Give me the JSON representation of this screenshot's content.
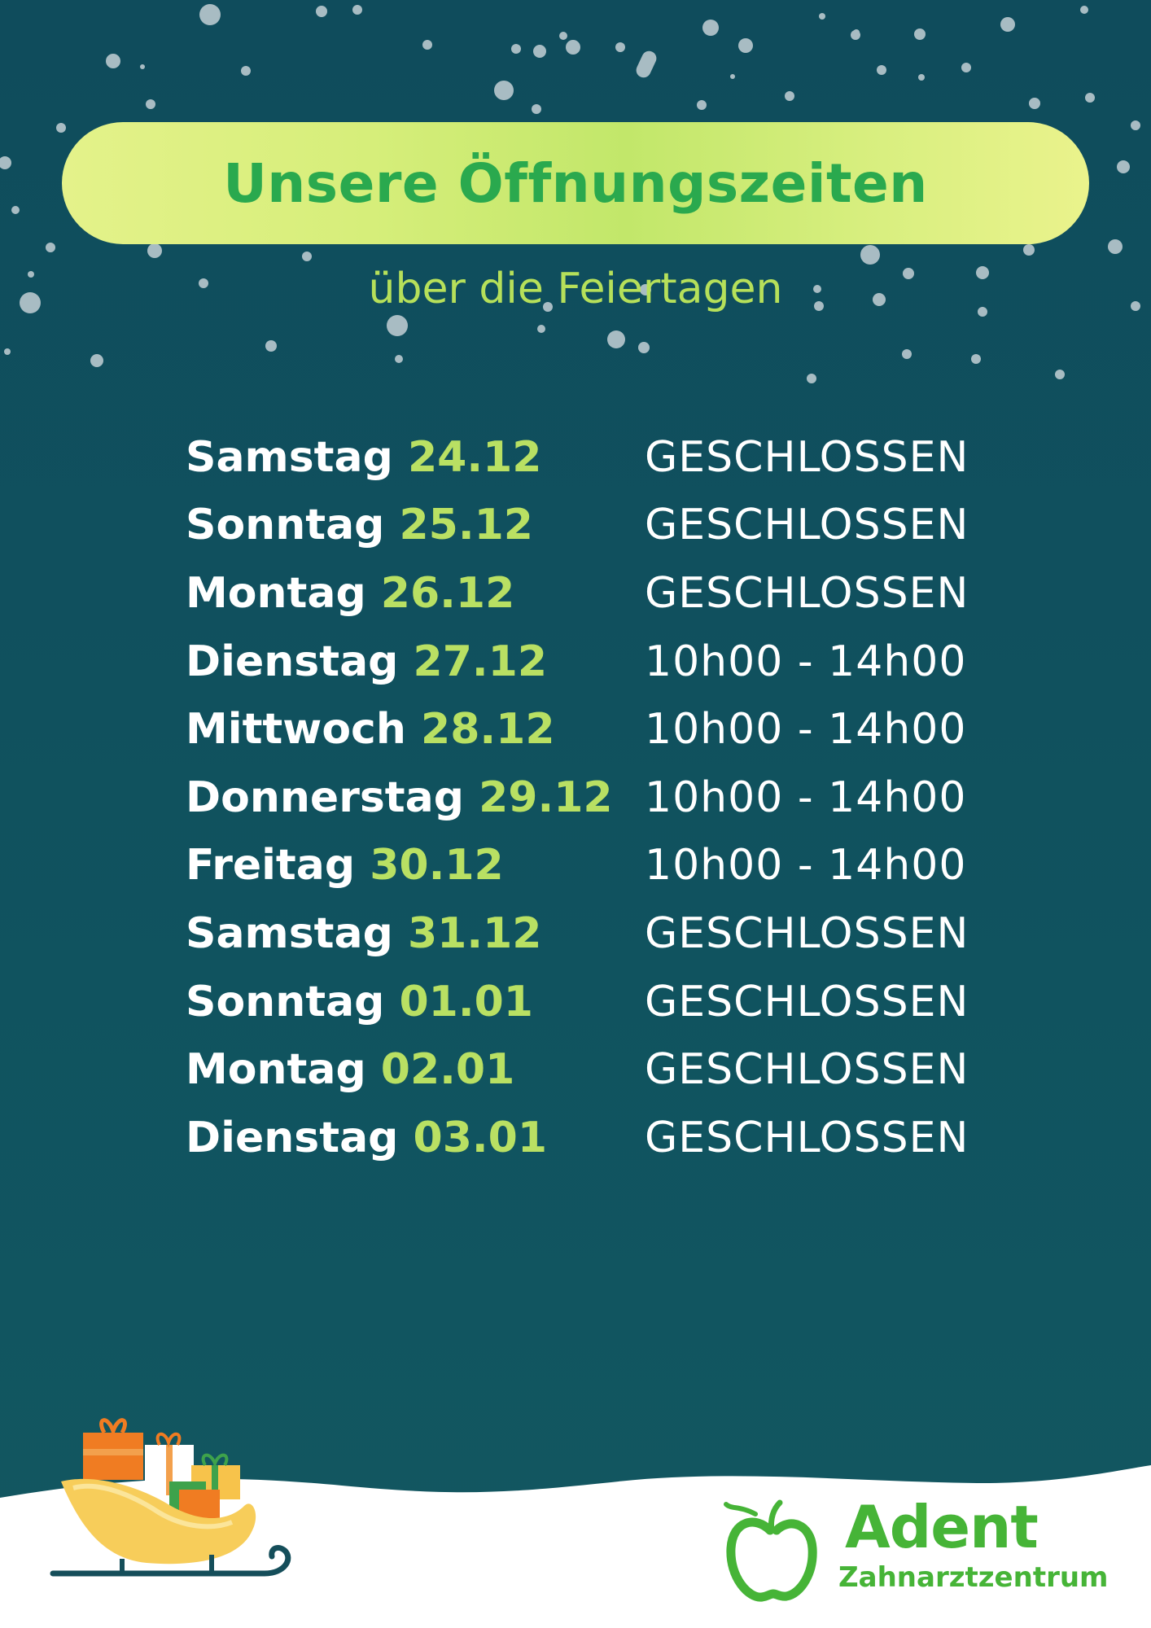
{
  "header": {
    "title": "Unsere Öffnungszeiten",
    "subtitle": "über die Feiertagen"
  },
  "schedule": [
    {
      "day": "Samstag",
      "date": "24.12",
      "status": "GESCHLOSSEN"
    },
    {
      "day": "Sonntag",
      "date": "25.12",
      "status": "GESCHLOSSEN"
    },
    {
      "day": "Montag",
      "date": "26.12",
      "status": "GESCHLOSSEN"
    },
    {
      "day": "Dienstag",
      "date": "27.12",
      "status": "10h00 - 14h00"
    },
    {
      "day": "Mittwoch",
      "date": "28.12",
      "status": "10h00 - 14h00"
    },
    {
      "day": "Donnerstag",
      "date": "29.12",
      "status": "10h00 - 14h00"
    },
    {
      "day": "Freitag",
      "date": "30.12",
      "status": "10h00 - 14h00"
    },
    {
      "day": "Samstag",
      "date": "31.12",
      "status": "GESCHLOSSEN"
    },
    {
      "day": "Sonntag",
      "date": "01.01",
      "status": "GESCHLOSSEN"
    },
    {
      "day": "Montag",
      "date": "02.01",
      "status": "GESCHLOSSEN"
    },
    {
      "day": "Dienstag",
      "date": "03.01",
      "status": "GESCHLOSSEN"
    }
  ],
  "logo": {
    "name": "Adent",
    "subtitle": "Zahnarztzentrum"
  },
  "colors": {
    "background": "#0f5060",
    "accent_green": "#b9e063",
    "title_green": "#2aa94e",
    "logo_green": "#46b437"
  },
  "icons": [
    "snowflake-dots",
    "sleigh-with-gifts-icon",
    "apple-logo-icon"
  ]
}
